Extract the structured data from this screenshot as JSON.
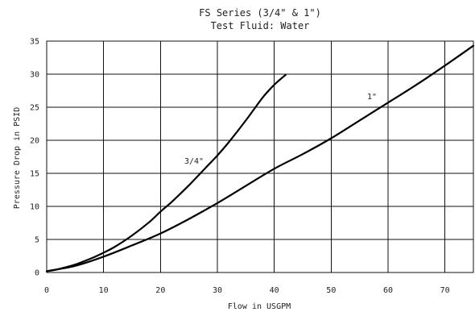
{
  "chart_data": {
    "type": "line",
    "title": "FS Series (3/4\" & 1\")",
    "subtitle": "Test Fluid: Water",
    "xlabel": "Flow in USGPM",
    "ylabel": "Pressure Drop in PSID",
    "xlim": [
      0,
      75
    ],
    "ylim": [
      0,
      35
    ],
    "xticks": [
      0,
      10,
      20,
      30,
      40,
      50,
      60,
      70
    ],
    "yticks": [
      0,
      5,
      10,
      15,
      20,
      25,
      30,
      35
    ],
    "grid": true,
    "series": [
      {
        "name": "3/4\"",
        "x": [
          0,
          2,
          5,
          8,
          10,
          12,
          15,
          18,
          20,
          22,
          25,
          28,
          30,
          32,
          35,
          38,
          40,
          42
        ],
        "y": [
          0.2,
          0.5,
          1.2,
          2.2,
          3.0,
          3.9,
          5.6,
          7.6,
          9.2,
          10.7,
          13.2,
          15.9,
          17.7,
          19.7,
          23.0,
          26.5,
          28.4,
          29.9
        ]
      },
      {
        "name": "1\"",
        "x": [
          0,
          5,
          10,
          15,
          20,
          25,
          30,
          35,
          40,
          45,
          50,
          55,
          60,
          65,
          70,
          75
        ],
        "y": [
          0.2,
          1.0,
          2.4,
          4.1,
          5.9,
          8.1,
          10.5,
          13.1,
          15.7,
          17.9,
          20.3,
          23.0,
          25.7,
          28.4,
          31.3,
          34.3
        ]
      }
    ]
  },
  "annotations": {
    "series_3_4": "3/4\"",
    "series_1": "1\""
  }
}
